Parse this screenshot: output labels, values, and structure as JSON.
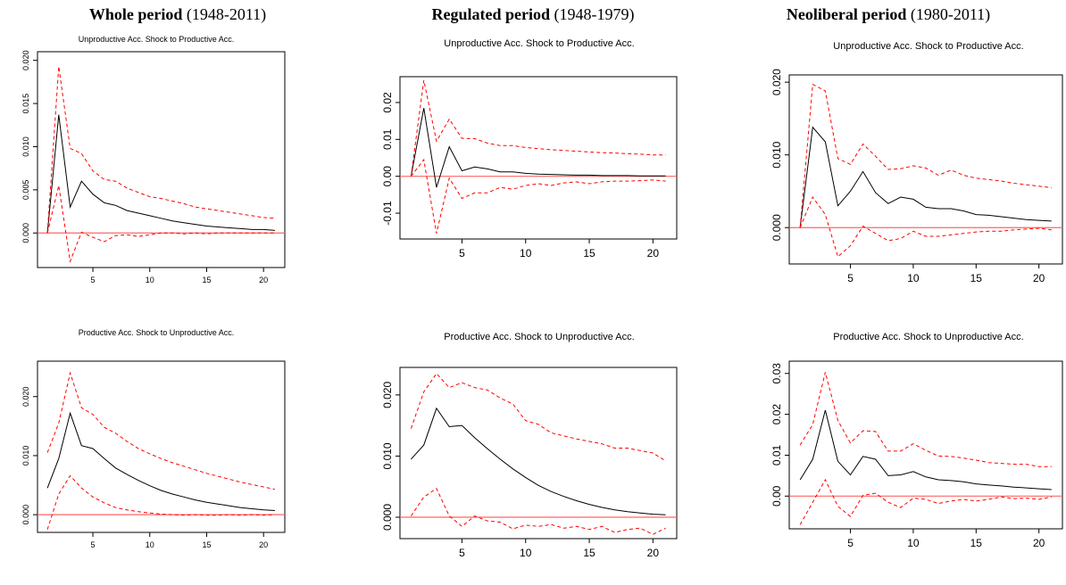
{
  "column_headers": [
    {
      "bold": "Whole period",
      "range": "(1948-2011)"
    },
    {
      "bold": "Regulated period",
      "range": "(1948-1979)"
    },
    {
      "bold": "Neoliberal period",
      "range": "(1980-2011)"
    }
  ],
  "colors": {
    "irf_line": "#000000",
    "bands": "#ff0000",
    "zero_line": "#ff6666",
    "frame": "#000000"
  },
  "chart_data": [
    {
      "id": "p11",
      "type": "line",
      "title": "Unproductive Acc. Shock to Productive Acc.",
      "xlim": [
        1,
        21
      ],
      "ylim": [
        -0.004,
        0.021
      ],
      "xticks": [
        5,
        10,
        15,
        20
      ],
      "yticks": [
        0.0,
        0.005,
        0.01,
        0.015,
        0.02
      ],
      "ytick_labels": [
        "0.000",
        "0.005",
        "0.010",
        "0.015",
        "0.020"
      ],
      "x": [
        1,
        2,
        3,
        4,
        5,
        6,
        7,
        8,
        9,
        10,
        11,
        12,
        13,
        14,
        15,
        16,
        17,
        18,
        19,
        20,
        21
      ],
      "series": [
        {
          "values": [
            0,
            0.0137,
            0.003,
            0.006,
            0.0045,
            0.0035,
            0.0032,
            0.0026,
            0.0023,
            0.002,
            0.0017,
            0.0014,
            0.0012,
            0.001,
            0.0008,
            0.0007,
            0.0006,
            0.0005,
            0.0004,
            0.0004,
            0.0003
          ]
        },
        {
          "values": [
            0,
            0.0193,
            0.0098,
            0.0092,
            0.0072,
            0.0062,
            0.006,
            0.0052,
            0.0047,
            0.0042,
            0.004,
            0.0037,
            0.0034,
            0.003,
            0.0028,
            0.0026,
            0.0024,
            0.0022,
            0.002,
            0.0018,
            0.0017
          ]
        },
        {
          "values": [
            0,
            0.0055,
            -0.0033,
            0.0001,
            -0.0005,
            -0.001,
            -0.0003,
            -0.0002,
            -0.0004,
            -0.0002,
            0,
            0,
            -0.0001,
            0,
            -0.0001,
            0,
            0,
            0,
            0,
            0,
            0
          ]
        }
      ]
    },
    {
      "id": "p12",
      "type": "line",
      "title": "Unproductive Acc. Shock to Productive Acc.",
      "xlim": [
        1,
        21
      ],
      "ylim": [
        -0.017,
        0.027
      ],
      "xticks": [
        5,
        10,
        15,
        20
      ],
      "yticks": [
        -0.01,
        0.0,
        0.01,
        0.02
      ],
      "ytick_labels": [
        "-0.01",
        "0.00",
        "0.01",
        "0.02"
      ],
      "x": [
        1,
        2,
        3,
        4,
        5,
        6,
        7,
        8,
        9,
        10,
        11,
        12,
        13,
        14,
        15,
        16,
        17,
        18,
        19,
        20,
        21
      ],
      "series": [
        {
          "values": [
            0,
            0.0185,
            -0.003,
            0.008,
            0.0015,
            0.0025,
            0.002,
            0.0012,
            0.0012,
            0.0008,
            0.0006,
            0.0005,
            0.0004,
            0.0003,
            0.0003,
            0.0002,
            0.0002,
            0.0002,
            0.0001,
            0.0001,
            0.0001
          ]
        },
        {
          "values": [
            0,
            0.026,
            0.0095,
            0.0155,
            0.0103,
            0.0102,
            0.009,
            0.0083,
            0.0083,
            0.0078,
            0.0075,
            0.0072,
            0.007,
            0.0068,
            0.0066,
            0.0064,
            0.0063,
            0.0061,
            0.006,
            0.0058,
            0.0058
          ]
        },
        {
          "values": [
            0,
            0.0045,
            -0.0155,
            -0.0005,
            -0.006,
            -0.0045,
            -0.0045,
            -0.003,
            -0.0035,
            -0.0025,
            -0.002,
            -0.0025,
            -0.0018,
            -0.0015,
            -0.002,
            -0.0015,
            -0.0013,
            -0.0013,
            -0.0012,
            -0.001,
            -0.0013
          ]
        }
      ]
    },
    {
      "id": "p13",
      "type": "line",
      "title": "Unproductive Acc. Shock to Productive Acc.",
      "xlim": [
        1,
        21
      ],
      "ylim": [
        -0.005,
        0.021
      ],
      "xticks": [
        5,
        10,
        15,
        20
      ],
      "yticks": [
        0.0,
        0.01,
        0.02
      ],
      "ytick_labels": [
        "0.000",
        "0.010",
        "0.020"
      ],
      "x": [
        1,
        2,
        3,
        4,
        5,
        6,
        7,
        8,
        9,
        10,
        11,
        12,
        13,
        14,
        15,
        16,
        17,
        18,
        19,
        20,
        21
      ],
      "series": [
        {
          "values": [
            0,
            0.0138,
            0.0118,
            0.003,
            0.005,
            0.0077,
            0.0048,
            0.0033,
            0.0042,
            0.0039,
            0.0028,
            0.0026,
            0.0026,
            0.0023,
            0.0018,
            0.0017,
            0.0015,
            0.0013,
            0.0011,
            0.001,
            0.0009
          ]
        },
        {
          "values": [
            0,
            0.0197,
            0.0188,
            0.0095,
            0.0087,
            0.0115,
            0.0098,
            0.008,
            0.0081,
            0.0085,
            0.0082,
            0.0072,
            0.0079,
            0.0072,
            0.0068,
            0.0066,
            0.0064,
            0.0061,
            0.0059,
            0.0057,
            0.0055
          ]
        },
        {
          "values": [
            0,
            0.0042,
            0.0018,
            -0.004,
            -0.0025,
            0.0002,
            -0.0008,
            -0.0018,
            -0.0015,
            -0.0005,
            -0.0012,
            -0.0012,
            -0.001,
            -0.0008,
            -0.0006,
            -0.0005,
            -0.0005,
            -0.0003,
            -0.0002,
            -0.0001,
            -0.0003
          ]
        }
      ]
    },
    {
      "id": "p21",
      "type": "line",
      "title": "Productive Acc. Shock to Unproductive Acc.",
      "xlim": [
        1,
        21
      ],
      "ylim": [
        -0.003,
        0.026
      ],
      "xticks": [
        5,
        10,
        15,
        20
      ],
      "yticks": [
        0.0,
        0.01,
        0.02
      ],
      "ytick_labels": [
        "0.000",
        "0.010",
        "0.020"
      ],
      "x": [
        1,
        2,
        3,
        4,
        5,
        6,
        7,
        8,
        9,
        10,
        11,
        12,
        13,
        14,
        15,
        16,
        17,
        18,
        19,
        20,
        21
      ],
      "series": [
        {
          "values": [
            0.0045,
            0.0095,
            0.0172,
            0.0117,
            0.0112,
            0.0095,
            0.0079,
            0.0068,
            0.0058,
            0.0049,
            0.0041,
            0.0035,
            0.003,
            0.0025,
            0.0021,
            0.0018,
            0.0015,
            0.0012,
            0.001,
            0.0008,
            0.0007
          ]
        },
        {
          "values": [
            0.0105,
            0.0155,
            0.024,
            0.0181,
            0.017,
            0.0148,
            0.0138,
            0.0124,
            0.0112,
            0.0103,
            0.0095,
            0.0088,
            0.0082,
            0.0076,
            0.007,
            0.0065,
            0.006,
            0.0055,
            0.0051,
            0.0047,
            0.0043
          ]
        },
        {
          "values": [
            -0.0025,
            0.0035,
            0.0066,
            0.0045,
            0.003,
            0.002,
            0.0012,
            0.0008,
            0.0005,
            0.0003,
            0.0001,
            0,
            -0.0001,
            0,
            -0.0001,
            -0.0001,
            0,
            -0.0001,
            0,
            -0.0001,
            0
          ]
        }
      ]
    },
    {
      "id": "p22",
      "type": "line",
      "title": "Productive Acc. Shock to Unproductive Acc.",
      "xlim": [
        1,
        21
      ],
      "ylim": [
        -0.0035,
        0.0245
      ],
      "xticks": [
        5,
        10,
        15,
        20
      ],
      "yticks": [
        0.0,
        0.01,
        0.02
      ],
      "ytick_labels": [
        "0.000",
        "0.010",
        "0.020"
      ],
      "x": [
        1,
        2,
        3,
        4,
        5,
        6,
        7,
        8,
        9,
        10,
        11,
        12,
        13,
        14,
        15,
        16,
        17,
        18,
        19,
        20,
        21
      ],
      "series": [
        {
          "values": [
            0.0095,
            0.0118,
            0.0178,
            0.0148,
            0.015,
            0.013,
            0.0112,
            0.0095,
            0.0079,
            0.0065,
            0.0052,
            0.0042,
            0.0034,
            0.0027,
            0.0021,
            0.0016,
            0.0012,
            0.0009,
            0.0007,
            0.0005,
            0.0004
          ]
        },
        {
          "values": [
            0.0145,
            0.0205,
            0.0235,
            0.0212,
            0.022,
            0.0212,
            0.0208,
            0.0195,
            0.0185,
            0.0158,
            0.0152,
            0.0138,
            0.0133,
            0.0128,
            0.0124,
            0.012,
            0.0113,
            0.0113,
            0.0109,
            0.0105,
            0.0092
          ]
        },
        {
          "values": [
            0.0002,
            0.0033,
            0.0047,
            0.0002,
            -0.0015,
            0.0002,
            -0.0006,
            -0.0008,
            -0.0019,
            -0.0013,
            -0.0015,
            -0.0012,
            -0.0018,
            -0.0015,
            -0.002,
            -0.0015,
            -0.0025,
            -0.002,
            -0.0018,
            -0.0028,
            -0.0018
          ]
        }
      ]
    },
    {
      "id": "p23",
      "type": "line",
      "title": "Productive Acc. Shock to Unproductive Acc.",
      "xlim": [
        1,
        21
      ],
      "ylim": [
        -0.008,
        0.033
      ],
      "xticks": [
        5,
        10,
        15,
        20
      ],
      "yticks": [
        0.0,
        0.01,
        0.02,
        0.03
      ],
      "ytick_labels": [
        "0.00",
        "0.01",
        "0.02",
        "0.03"
      ],
      "x": [
        1,
        2,
        3,
        4,
        5,
        6,
        7,
        8,
        9,
        10,
        11,
        12,
        13,
        14,
        15,
        16,
        17,
        18,
        19,
        20,
        21
      ],
      "series": [
        {
          "values": [
            0.004,
            0.009,
            0.021,
            0.0085,
            0.0052,
            0.0097,
            0.009,
            0.005,
            0.0052,
            0.006,
            0.0047,
            0.004,
            0.0038,
            0.0035,
            0.003,
            0.0027,
            0.0025,
            0.0022,
            0.002,
            0.0018,
            0.0016
          ]
        },
        {
          "values": [
            0.0125,
            0.0175,
            0.0303,
            0.0185,
            0.013,
            0.016,
            0.0158,
            0.011,
            0.011,
            0.0128,
            0.0112,
            0.0098,
            0.0097,
            0.0093,
            0.0088,
            0.0082,
            0.008,
            0.0078,
            0.0078,
            0.0072,
            0.0072
          ]
        },
        {
          "values": [
            -0.007,
            -0.0015,
            0.004,
            -0.0025,
            -0.005,
            0.0002,
            0.0007,
            -0.0015,
            -0.0028,
            -0.0005,
            -0.0008,
            -0.0018,
            -0.0012,
            -0.0008,
            -0.0012,
            -0.0008,
            -0.0002,
            -0.0006,
            -0.0005,
            -0.0008,
            -0.0002
          ]
        }
      ]
    }
  ]
}
